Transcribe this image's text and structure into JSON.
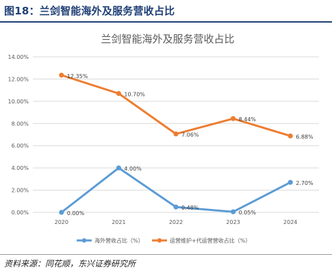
{
  "figure": {
    "title": "图18：兰剑智能海外及服务营收占比",
    "source": "资料来源：同花顺，东兴证券研究所"
  },
  "colors": {
    "title": "#1f3f75",
    "series_blue": "#5b9bd5",
    "series_orange": "#ed7d31",
    "grid": "#d9d9d9",
    "axis_text": "#595959"
  },
  "chart_data": {
    "type": "line",
    "title": "兰剑智能海外及服务营收占比",
    "x": [
      "2020",
      "2021",
      "2022",
      "2023",
      "2024"
    ],
    "ylim": [
      0,
      14
    ],
    "yticks": [
      "0.00%",
      "2.00%",
      "4.00%",
      "6.00%",
      "8.00%",
      "10.00%",
      "12.00%",
      "14.00%"
    ],
    "yticks_values": [
      0,
      2,
      4,
      6,
      8,
      10,
      12,
      14
    ],
    "grid": true,
    "legend_position": "bottom",
    "series": [
      {
        "name": "海外营收占比（%）",
        "color": "#5b9bd5",
        "values": [
          0.0,
          4.0,
          0.48,
          0.05,
          2.7
        ],
        "labels": [
          "0.00%",
          "4.00%",
          "0.48%",
          "0.05%",
          "2.70%"
        ]
      },
      {
        "name": "运营维护+代运营营收占比（%）",
        "color": "#ed7d31",
        "values": [
          12.35,
          10.7,
          7.06,
          8.44,
          6.88
        ],
        "labels": [
          "12.35%",
          "10.70%",
          "7.06%",
          "8.44%",
          "6.88%"
        ]
      }
    ]
  }
}
